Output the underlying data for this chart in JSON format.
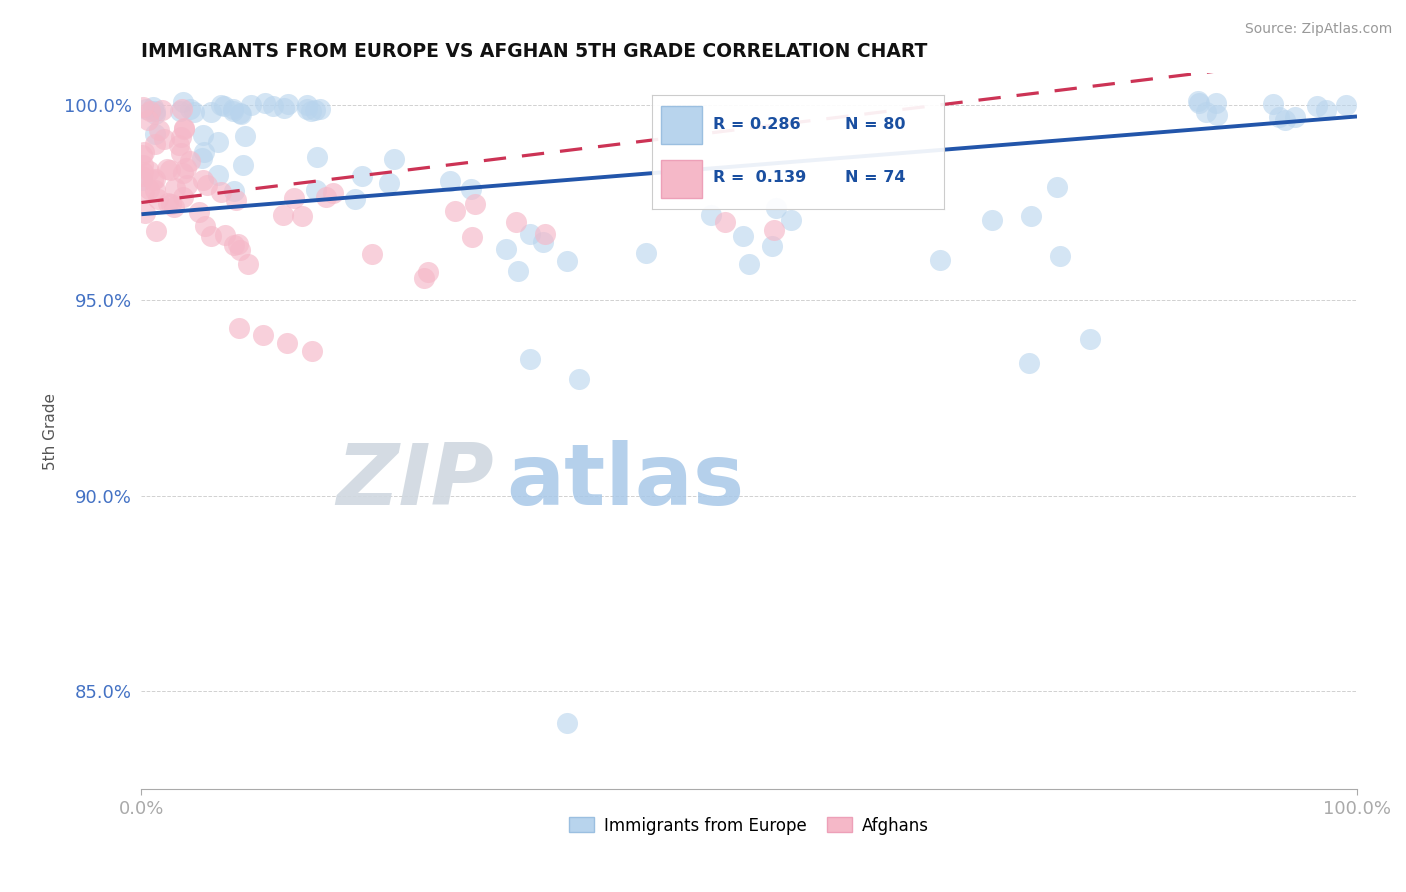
{
  "title": "IMMIGRANTS FROM EUROPE VS AFGHAN 5TH GRADE CORRELATION CHART",
  "source_text": "Source: ZipAtlas.com",
  "ylabel": "5th Grade",
  "xlim": [
    0.0,
    1.0
  ],
  "ylim": [
    0.825,
    1.008
  ],
  "yticks": [
    0.85,
    0.9,
    0.95,
    1.0
  ],
  "ytick_labels": [
    "85.0%",
    "90.0%",
    "95.0%",
    "100.0%"
  ],
  "xtick_labels": [
    "0.0%",
    "100.0%"
  ],
  "legend_r_blue": "R = 0.286",
  "legend_n_blue": "N = 80",
  "legend_r_pink": "R = 0.139",
  "legend_n_pink": "N = 74",
  "legend_label_blue": "Immigrants from Europe",
  "legend_label_pink": "Afghans",
  "blue_fill": "#b8d4ed",
  "blue_edge": "#9bbfe0",
  "pink_fill": "#f5b8c8",
  "pink_edge": "#eda0b8",
  "blue_line": "#2255aa",
  "pink_line": "#cc3355",
  "text_color_blue": "#1a4fa0",
  "grid_color": "#cccccc",
  "ytick_color": "#4472c4",
  "title_color": "#111111",
  "source_color": "#999999",
  "ylabel_color": "#555555"
}
